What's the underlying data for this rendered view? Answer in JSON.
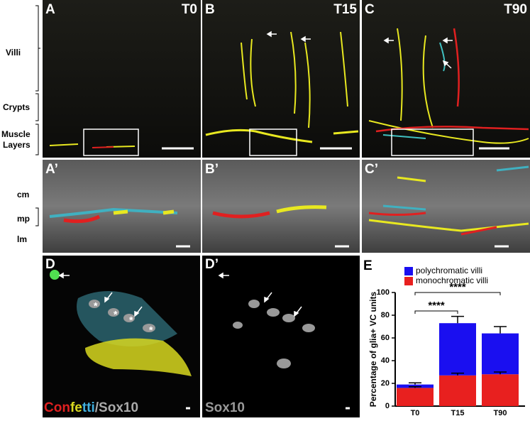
{
  "panels": {
    "A": {
      "label": "A",
      "time": "T0"
    },
    "B": {
      "label": "B",
      "time": "T15"
    },
    "C": {
      "label": "C",
      "time": "T90"
    },
    "A2": {
      "label": "A’"
    },
    "B2": {
      "label": "B’"
    },
    "C2": {
      "label": "C’"
    },
    "D": {
      "label": "D",
      "stain": [
        "Con",
        "fe",
        "tti",
        "/Sox10"
      ],
      "stars": [
        "*",
        "*",
        "*",
        "*"
      ]
    },
    "D2": {
      "label": "D’",
      "stain": "Sox10"
    },
    "E": {
      "label": "E"
    }
  },
  "side_labels": {
    "villi": "Villi",
    "crypts": "Crypts",
    "muscle": [
      "Muscle",
      "Layers"
    ],
    "cm": "cm",
    "mp": "mp",
    "lm": "lm"
  },
  "chart_data": {
    "type": "bar",
    "stacked": true,
    "ylabel": "Percentage of glia+ VC units",
    "categories": [
      "T0",
      "T15",
      "T90"
    ],
    "series": [
      {
        "name": "monochromatic villi",
        "color": "#e8201f",
        "values": [
          16,
          27,
          28
        ],
        "errors": [
          1,
          2,
          2
        ]
      },
      {
        "name": "polychromatic villi",
        "color": "#1a0ff0",
        "values": [
          3,
          46,
          36
        ],
        "errors": [
          1.5,
          6,
          6
        ]
      }
    ],
    "ylim": [
      0,
      100
    ],
    "yticks": [
      0,
      20,
      40,
      60,
      80,
      100
    ],
    "annotations": [
      "****",
      "****"
    ]
  }
}
